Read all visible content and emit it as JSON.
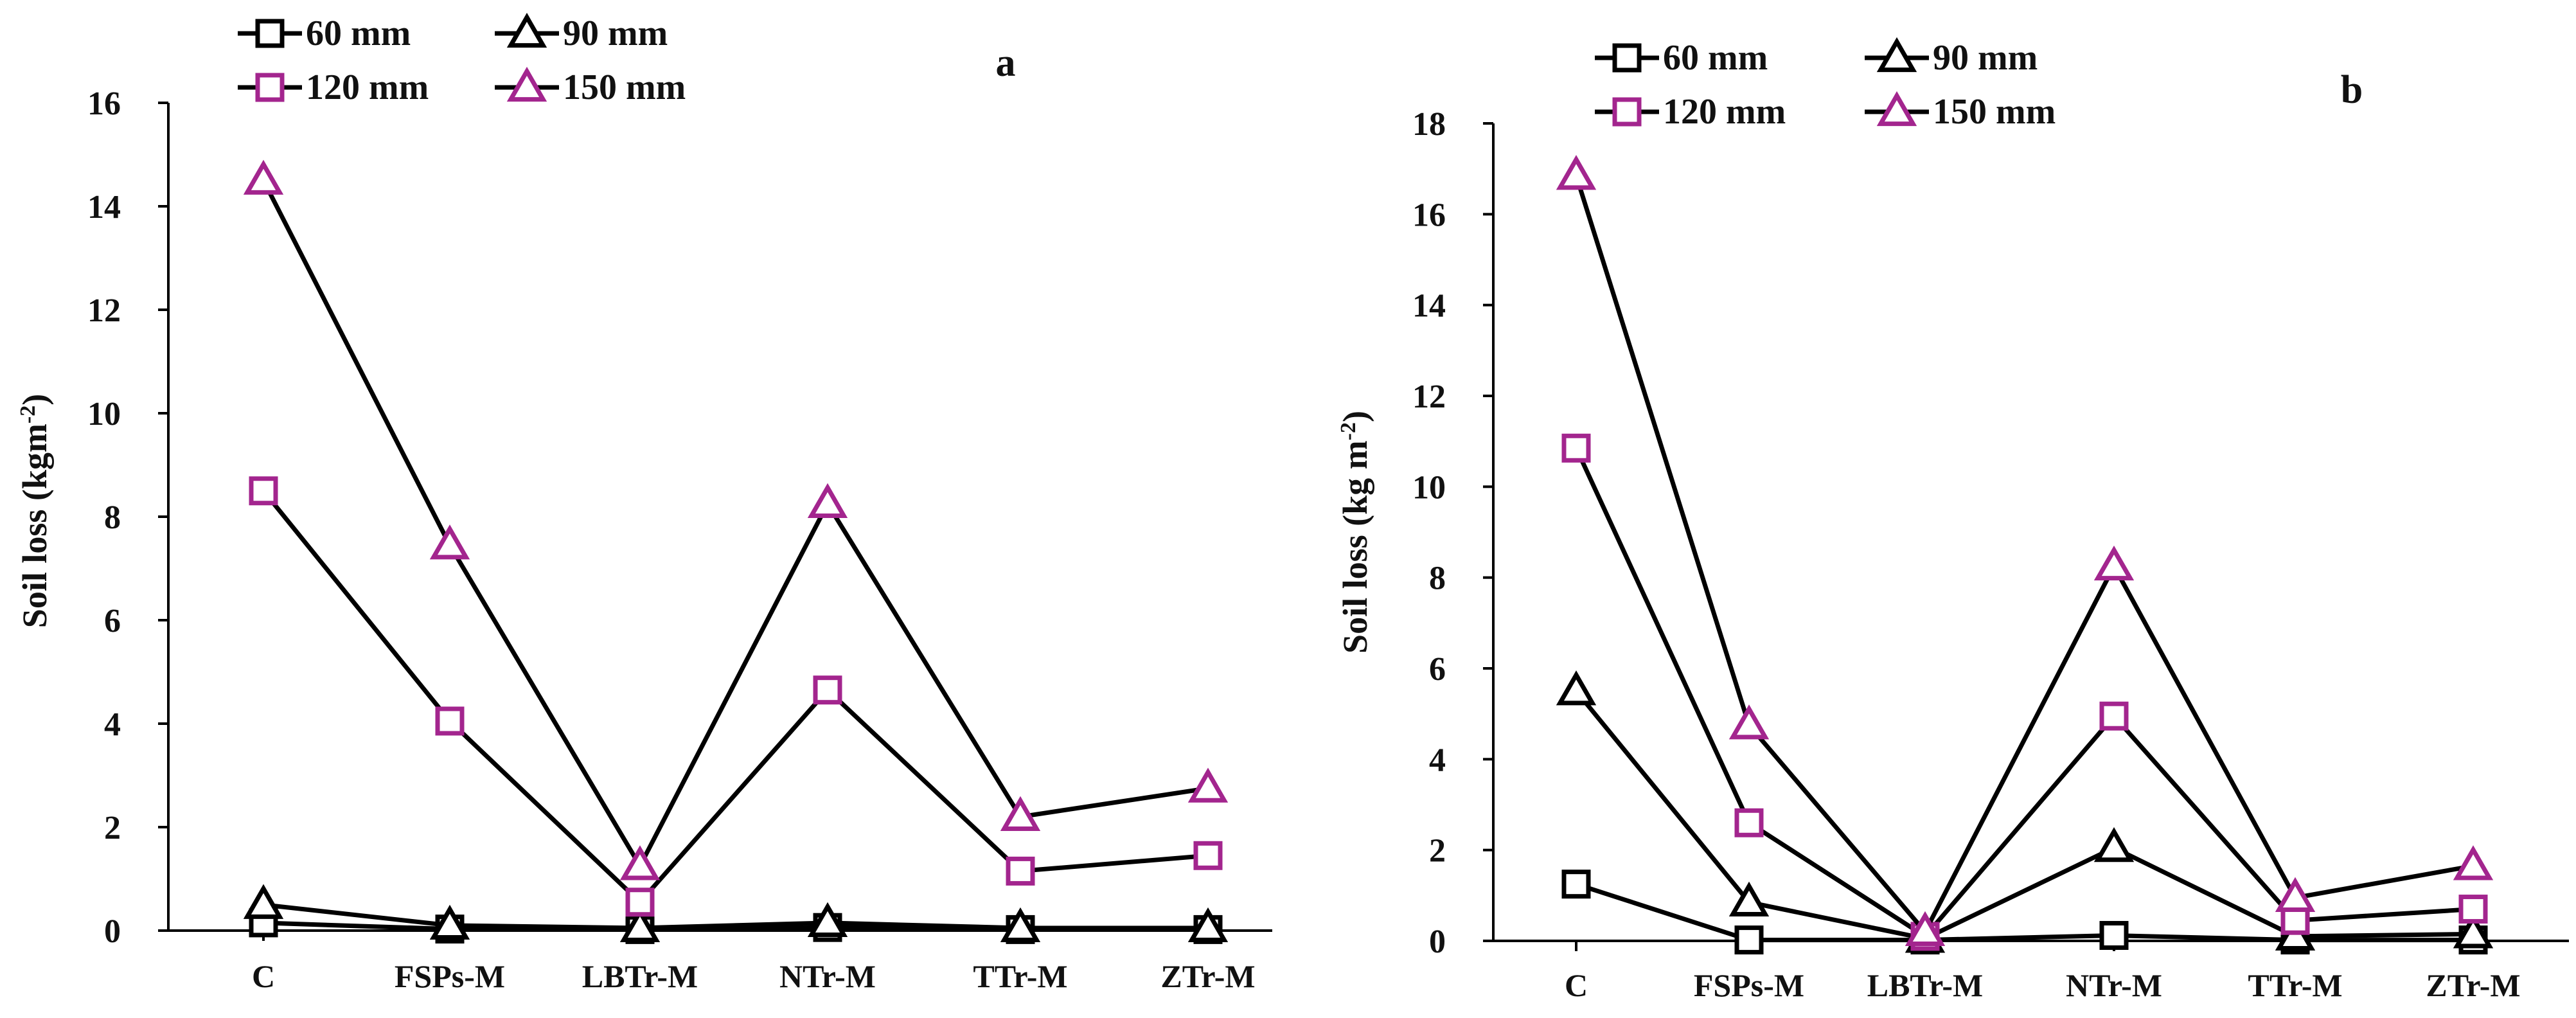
{
  "colors": {
    "black": "#000000",
    "magenta": "#a3258e"
  },
  "chart_data": [
    {
      "type": "line",
      "panel_label": "a",
      "title": "",
      "xlabel": "",
      "ylabel": "Soil loss (kgm",
      "ylabel_sup": "-2",
      "ylabel_tail": ")",
      "categories": [
        "C",
        "FSPs-M",
        "LBTr-M",
        "NTr-M",
        "TTr-M",
        "ZTr-M"
      ],
      "ylim": [
        0,
        16
      ],
      "yticks": [
        0,
        2,
        4,
        6,
        8,
        10,
        12,
        14,
        16
      ],
      "legend_position": "top-left",
      "series": [
        {
          "name": "60 mm",
          "marker": "square",
          "color": "#000000",
          "values": [
            0.15,
            0.03,
            0.02,
            0.06,
            0.02,
            0.02
          ]
        },
        {
          "name": "90 mm",
          "marker": "triangle",
          "color": "#000000",
          "values": [
            0.5,
            0.1,
            0.05,
            0.15,
            0.05,
            0.05
          ]
        },
        {
          "name": "120 mm",
          "marker": "square",
          "color": "#a3258e",
          "values": [
            8.5,
            4.05,
            0.55,
            4.65,
            1.15,
            1.45
          ]
        },
        {
          "name": "150 mm",
          "marker": "triangle",
          "color": "#a3258e",
          "values": [
            14.5,
            7.45,
            1.25,
            8.25,
            2.2,
            2.75
          ]
        }
      ]
    },
    {
      "type": "line",
      "panel_label": "b",
      "title": "",
      "xlabel": "",
      "ylabel": "Soil loss (kg m",
      "ylabel_sup": "-2",
      "ylabel_tail": ")",
      "categories": [
        "C",
        "FSPs-M",
        "LBTr-M",
        "NTr-M",
        "TTr-M",
        "ZTr-M"
      ],
      "ylim": [
        0,
        18
      ],
      "yticks": [
        0,
        2,
        4,
        6,
        8,
        10,
        12,
        14,
        16,
        18
      ],
      "legend_position": "top-left",
      "series": [
        {
          "name": "60 mm",
          "marker": "square",
          "color": "#000000",
          "values": [
            1.25,
            0.02,
            0.02,
            0.12,
            0.02,
            0.02
          ]
        },
        {
          "name": "90 mm",
          "marker": "triangle",
          "color": "#000000",
          "values": [
            5.5,
            0.85,
            0.05,
            2.05,
            0.1,
            0.15
          ]
        },
        {
          "name": "120 mm",
          "marker": "square",
          "color": "#a3258e",
          "values": [
            10.85,
            2.6,
            0.1,
            4.95,
            0.45,
            0.7
          ]
        },
        {
          "name": "150 mm",
          "marker": "triangle",
          "color": "#a3258e",
          "values": [
            16.85,
            4.75,
            0.2,
            8.25,
            0.95,
            1.65
          ]
        }
      ]
    }
  ]
}
